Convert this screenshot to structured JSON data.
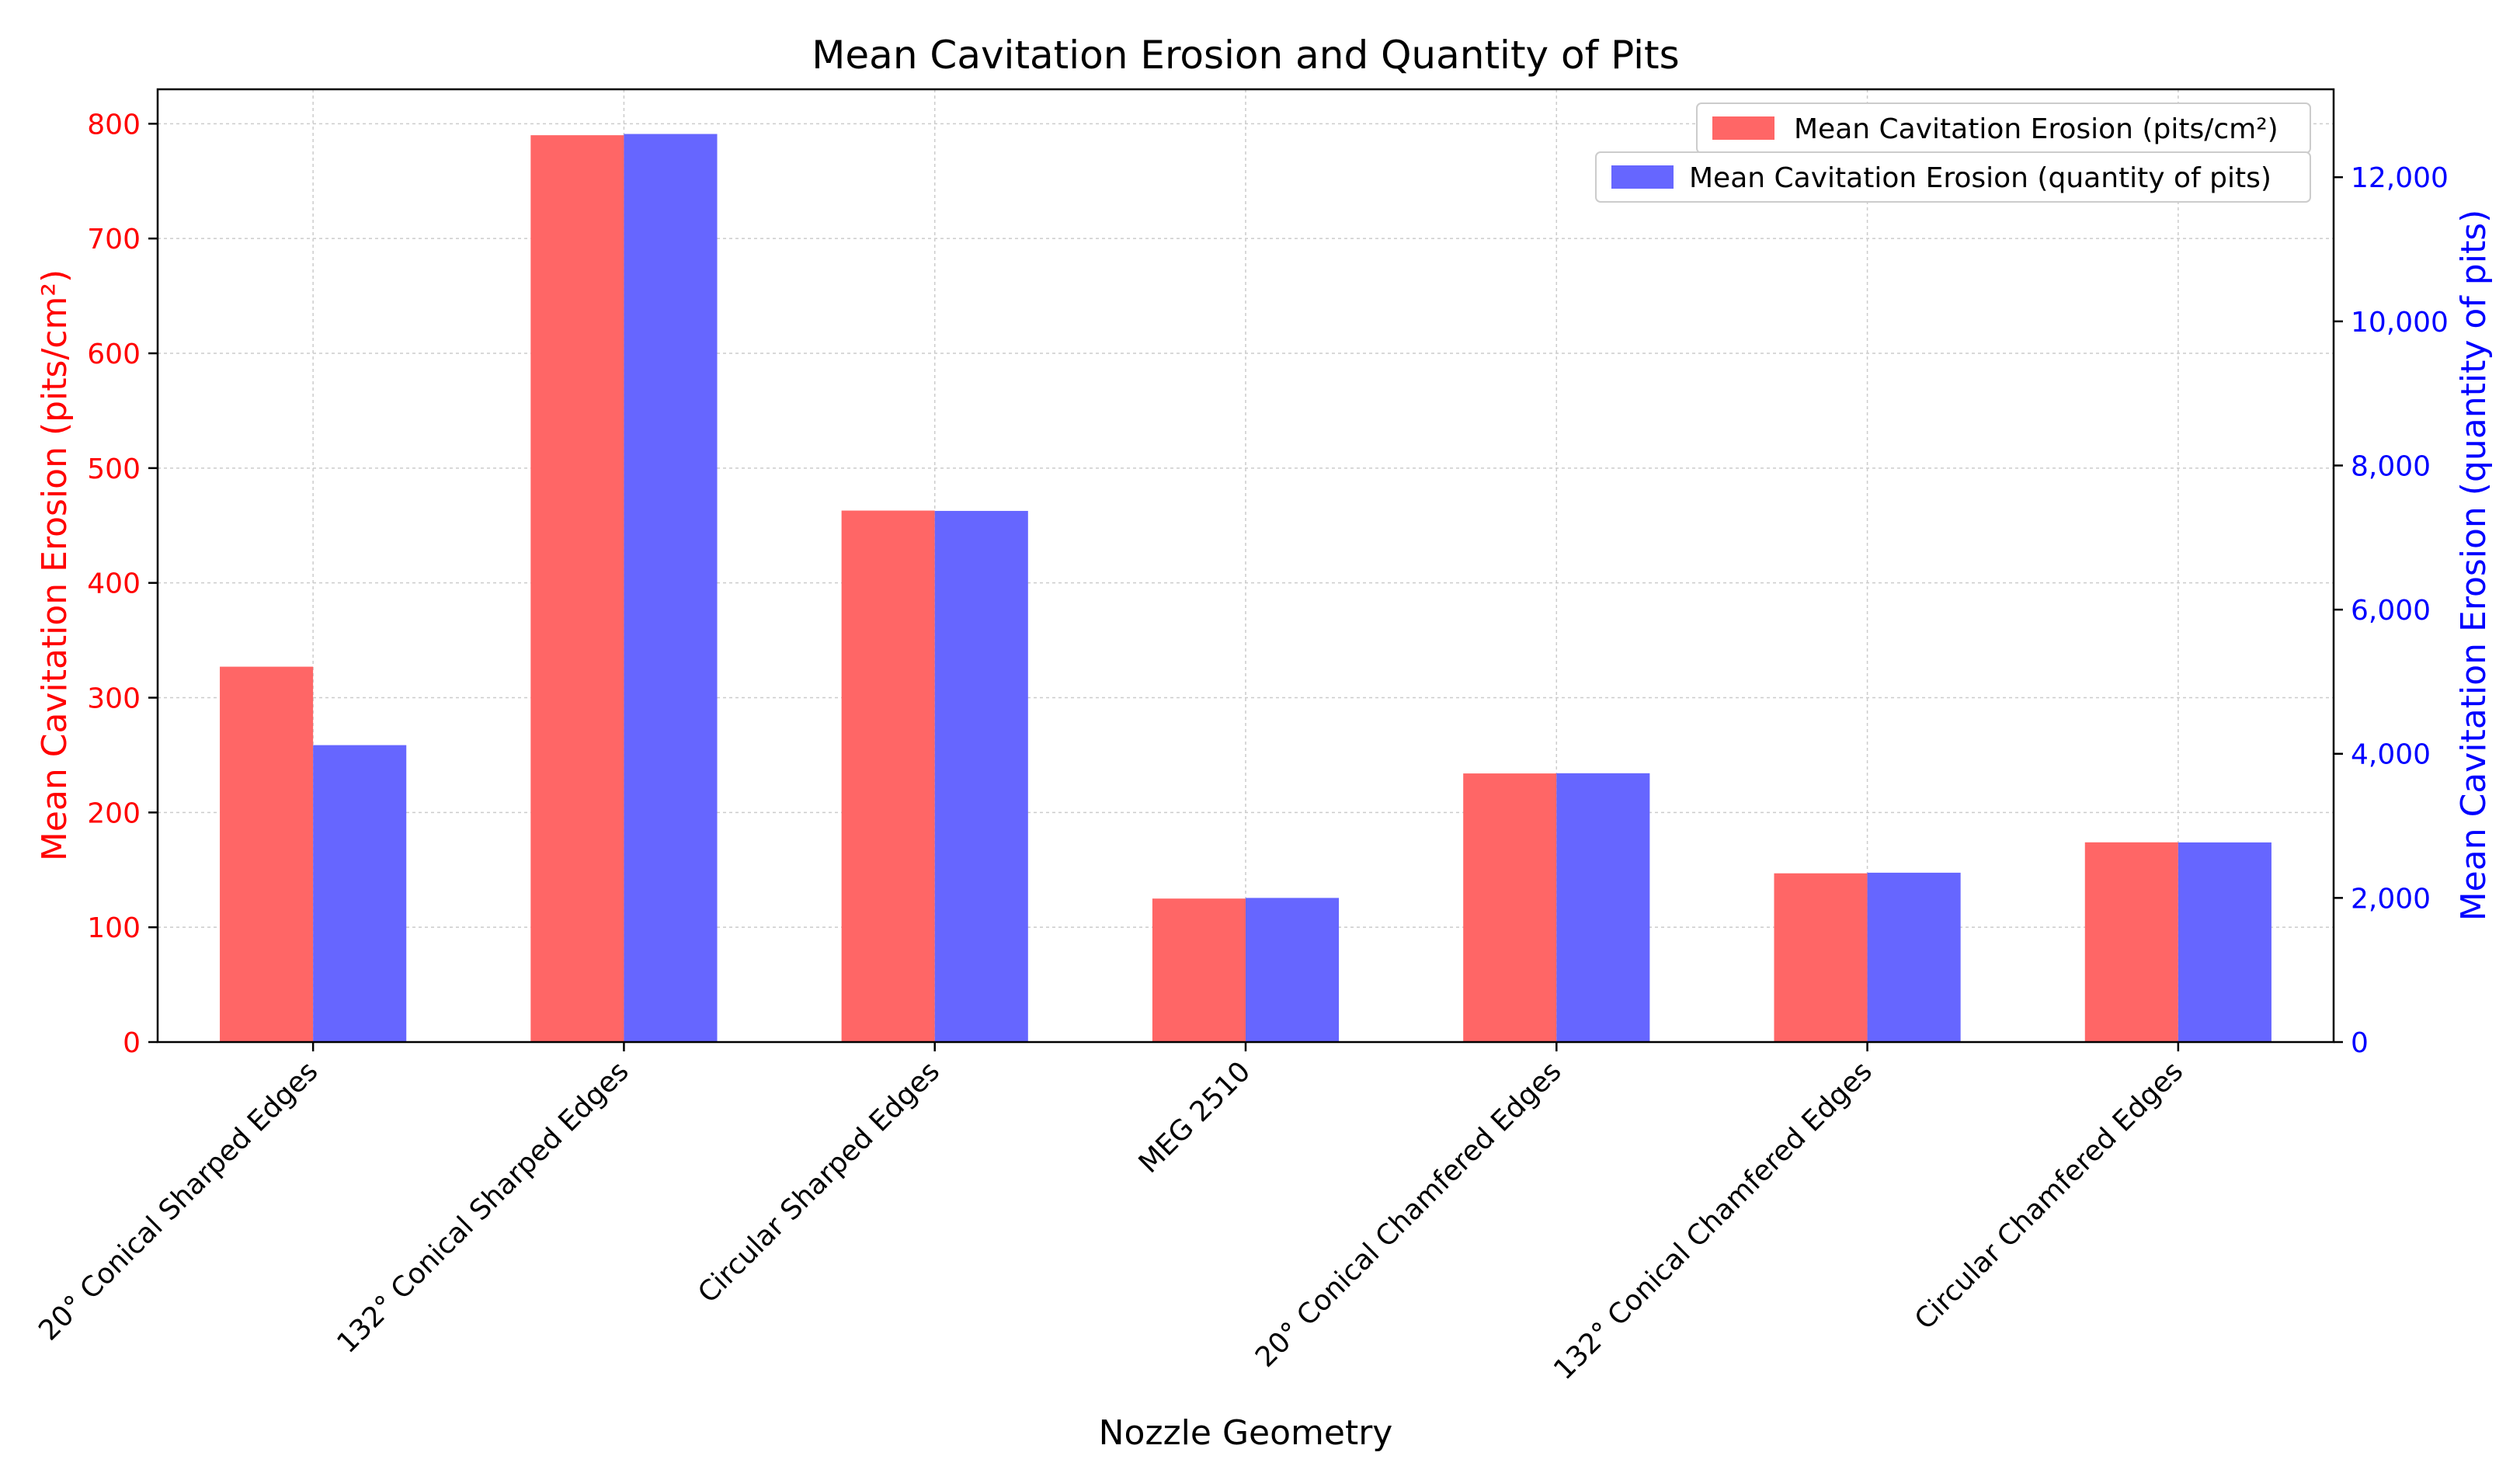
{
  "chart_data": {
    "type": "bar",
    "title": "Mean Cavitation Erosion and Quantity of Pits",
    "xlabel": "Nozzle Geometry",
    "categories": [
      "20° Conical Sharped Edges",
      "132° Conical Sharped Edges",
      "Circular Sharped Edges",
      "MEG 2510",
      "20° Conical Chamfered Edges",
      "132° Conical Chamfered Edges",
      "Circular Chamfered Edges"
    ],
    "series": [
      {
        "name": "Mean Cavitation Erosion (pits/cm²)",
        "axis": "left",
        "color": "#ff6666",
        "values": [
          327,
          790,
          463,
          125,
          234,
          147,
          174
        ]
      },
      {
        "name": "Mean Cavitation Erosion (quantity of pits)",
        "axis": "right",
        "color": "#6666ff",
        "values": [
          4120,
          12600,
          7370,
          2000,
          3730,
          2350,
          2770
        ]
      }
    ],
    "left_axis": {
      "label": "Mean Cavitation Erosion (pits/cm²)",
      "color": "#ff0000",
      "ylim": [
        0,
        830
      ],
      "ticks": [
        0,
        100,
        200,
        300,
        400,
        500,
        600,
        700,
        800
      ],
      "tick_labels": [
        "0",
        "100",
        "200",
        "300",
        "400",
        "500",
        "600",
        "700",
        "800"
      ]
    },
    "right_axis": {
      "label": "Mean Cavitation Erosion (quantity of pits)",
      "color": "#0000ff",
      "ylim": [
        0,
        13220
      ],
      "ticks": [
        0,
        2000,
        4000,
        6000,
        8000,
        10000,
        12000
      ],
      "tick_labels": [
        "0",
        "2,000",
        "4,000",
        "6,000",
        "8,000",
        "10,000",
        "12,000"
      ]
    },
    "grid": true,
    "legend_position": "top-right"
  }
}
